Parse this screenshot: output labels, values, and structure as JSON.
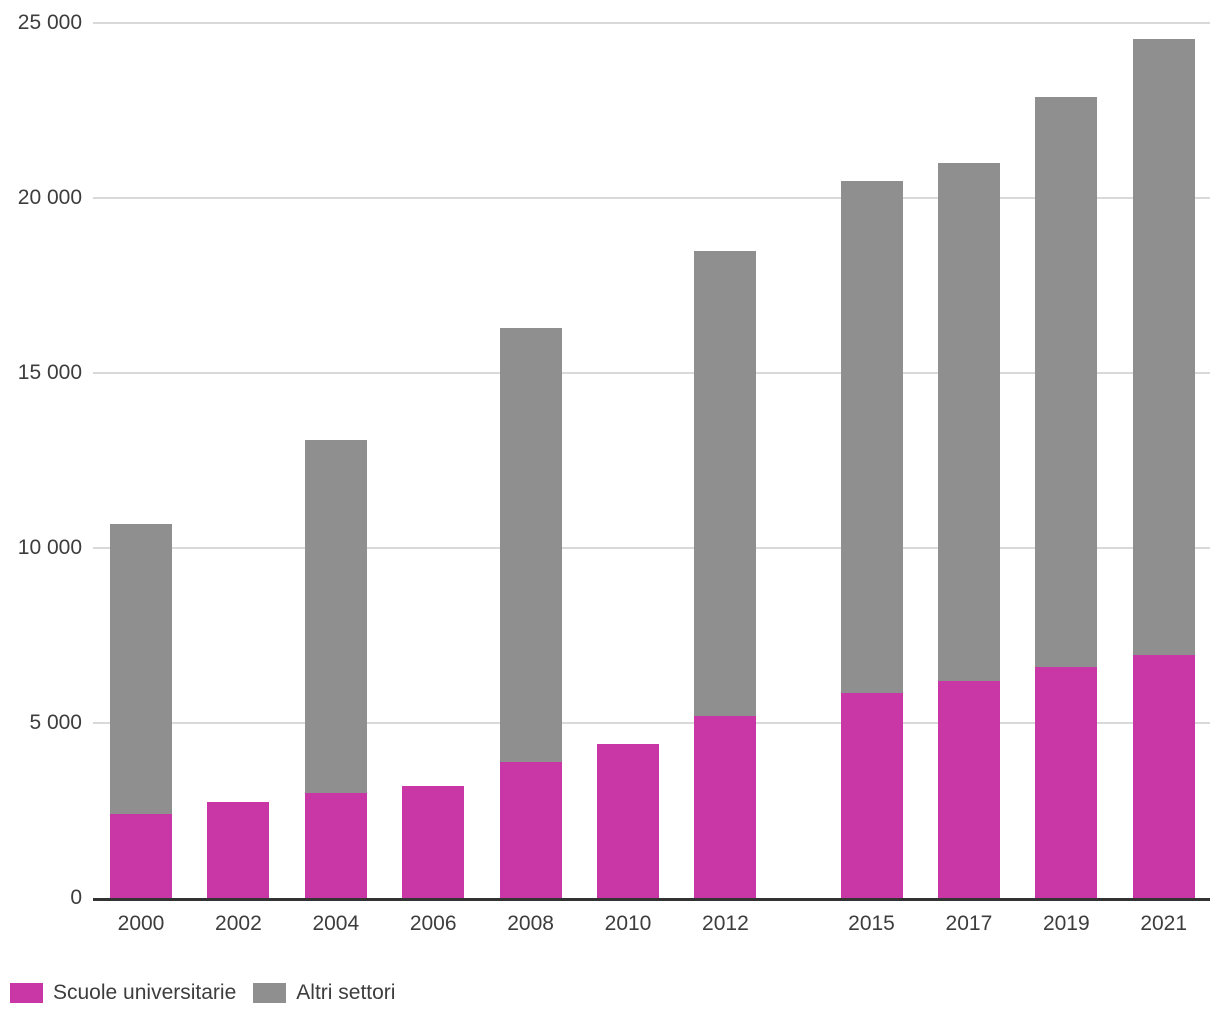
{
  "chart_data": {
    "type": "bar",
    "stacked": true,
    "title": "",
    "xlabel": "",
    "ylabel": "",
    "categories": [
      "2000",
      "2002",
      "2004",
      "2006",
      "2008",
      "2010",
      "2012",
      "2015",
      "2017",
      "2019",
      "2021"
    ],
    "series": [
      {
        "name": "Scuole universitarie",
        "color": "#c837a5",
        "values": [
          2400,
          2750,
          3000,
          3200,
          3900,
          4400,
          5200,
          5850,
          6200,
          6600,
          6950
        ]
      },
      {
        "name": "Altri settori",
        "color": "#8f8f8f",
        "values": [
          8300,
          0,
          10100,
          0,
          12400,
          0,
          13300,
          14650,
          14800,
          16300,
          17600
        ]
      }
    ],
    "ylim": [
      0,
      25000
    ],
    "y_ticks": [
      {
        "value": 0,
        "label": "0"
      },
      {
        "value": 5000,
        "label": "5 000"
      },
      {
        "value": 10000,
        "label": "10 000"
      },
      {
        "value": 15000,
        "label": "15 000"
      },
      {
        "value": 20000,
        "label": "20 000"
      },
      {
        "value": 25000,
        "label": "25 000"
      }
    ],
    "grid": true,
    "x_axis_scale": "linear-year",
    "legend_position": "bottom-left"
  },
  "legend": {
    "items": [
      {
        "label": "Scuole universitarie",
        "color": "#c837a5"
      },
      {
        "label": "Altri settori",
        "color": "#8f8f8f"
      }
    ]
  },
  "colors": {
    "grid": "#d9d9d9",
    "axis": "#333333",
    "text": "#3d3d3d",
    "background": "#ffffff"
  }
}
